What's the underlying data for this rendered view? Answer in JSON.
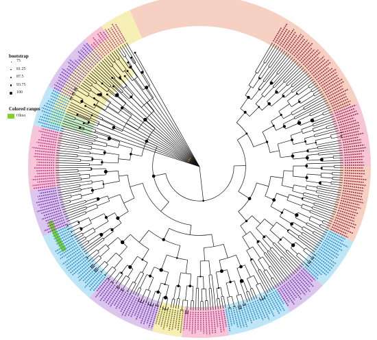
{
  "legend": {
    "bootstrap_title": "bootstrap",
    "bootstrap_values": [
      "75",
      "81.25",
      "87.5",
      "93.75",
      "100"
    ],
    "ranges_title": "Colored ranges",
    "ranges_items": [
      {
        "label": "Ohxo",
        "color": "#7cd424"
      }
    ]
  },
  "tree": {
    "clade_colors": {
      "pink": "#f7c5d8",
      "lavender": "#dcc6ee",
      "cyan": "#bfe6f6",
      "yellow": "#f6efb6",
      "green": "#c9efc6",
      "salmon": "#f6d0c2"
    },
    "label_colors": {
      "magenta": "#c0418f",
      "purple": "#7b3fb2",
      "blue": "#2e8fc8",
      "teal": "#2a9a8a",
      "red": "#9a2f3f",
      "olive": "#7d7a28"
    },
    "highlight_range": {
      "label": "Ohxo",
      "color": "#7cd424"
    }
  }
}
